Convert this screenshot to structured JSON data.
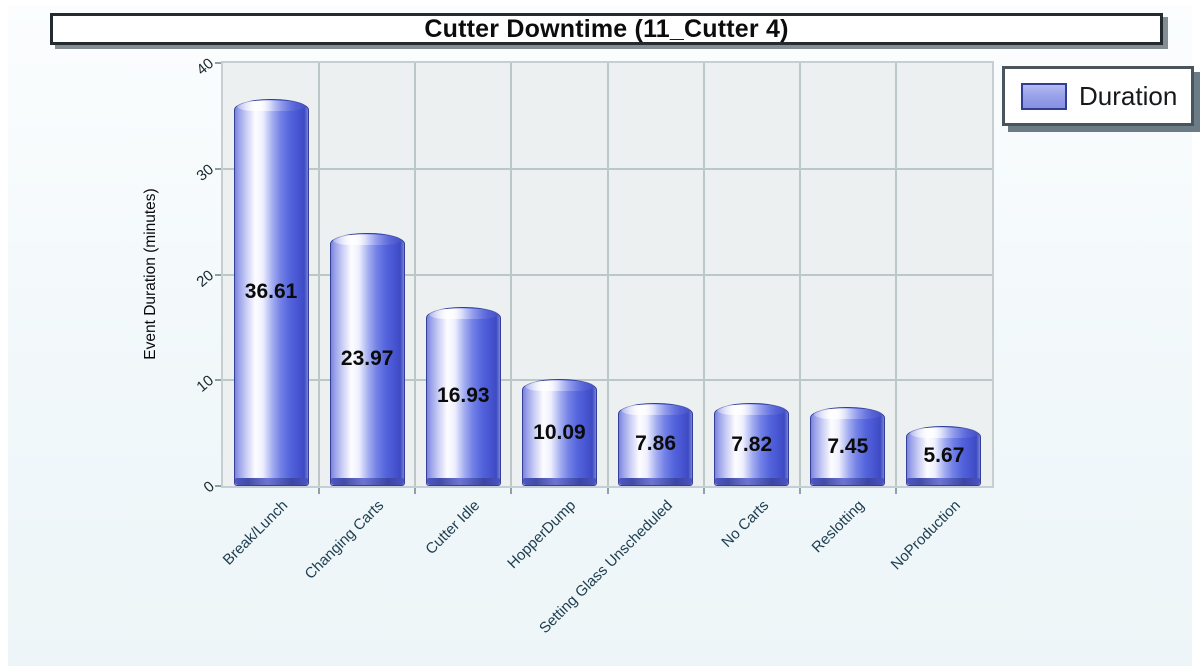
{
  "title": {
    "text": "Cutter Downtime (11_Cutter 4)"
  },
  "legend": {
    "label": "Duration",
    "swatch_color": "#9aa2e9"
  },
  "colors": {
    "bar_fill": "#8f97e6",
    "bar_border": "#343f9c",
    "plot_background": "#edf0f0",
    "gridline": "#bcc7c8",
    "page_background": "#f3f9fb"
  },
  "chart_data": {
    "type": "bar",
    "title": "Cutter Downtime (11_Cutter 4)",
    "series_name": "Duration",
    "categories": [
      "Break/Lunch",
      "Changing Carts",
      "Cutter Idle",
      "HopperDump",
      "Setting Glass Unscheduled",
      "No Carts",
      "Reslotting",
      "NoProduction"
    ],
    "values": [
      36.61,
      23.97,
      16.93,
      10.09,
      7.86,
      7.82,
      7.45,
      5.67
    ],
    "value_labels": [
      "36.61",
      "23.97",
      "16.93",
      "10.09",
      "7.86",
      "7.82",
      "7.45",
      "5.67"
    ],
    "xlabel": "",
    "ylabel": "Event Duration (minutes)",
    "ylim": [
      0,
      40
    ],
    "yticks": [
      0,
      10,
      20,
      30,
      40
    ],
    "grid": true,
    "legend_position": "top-right",
    "value_labels_on_bars": true,
    "xtick_rotation_deg": 45,
    "bar_style": "3d-cylinder"
  }
}
